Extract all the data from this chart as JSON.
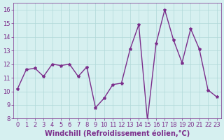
{
  "x": [
    0,
    1,
    2,
    3,
    4,
    5,
    6,
    7,
    8,
    9,
    10,
    11,
    12,
    13,
    14,
    15,
    16,
    17,
    18,
    19,
    20,
    21,
    22,
    23
  ],
  "y": [
    10.2,
    11.6,
    11.7,
    11.1,
    12.0,
    11.9,
    12.0,
    11.1,
    11.8,
    8.8,
    9.5,
    10.5,
    10.6,
    13.1,
    14.9,
    7.9,
    13.5,
    16.0,
    13.8,
    12.1,
    14.6,
    13.1,
    10.1,
    9.6
  ],
  "line_color": "#7b2d8b",
  "marker": "*",
  "marker_size": 3,
  "bg_color": "#d6f0f0",
  "grid_color": "#b0d8d8",
  "xlabel": "Windchill (Refroidissement éolien,°C)",
  "xlim": [
    -0.5,
    23.5
  ],
  "ylim": [
    8,
    16.5
  ],
  "yticks": [
    8,
    9,
    10,
    11,
    12,
    13,
    14,
    15,
    16
  ],
  "xticks": [
    0,
    1,
    2,
    3,
    4,
    5,
    6,
    7,
    8,
    9,
    10,
    11,
    12,
    13,
    14,
    15,
    16,
    17,
    18,
    19,
    20,
    21,
    22,
    23
  ],
  "tick_fontsize": 6,
  "xlabel_fontsize": 7,
  "line_width": 1.0
}
